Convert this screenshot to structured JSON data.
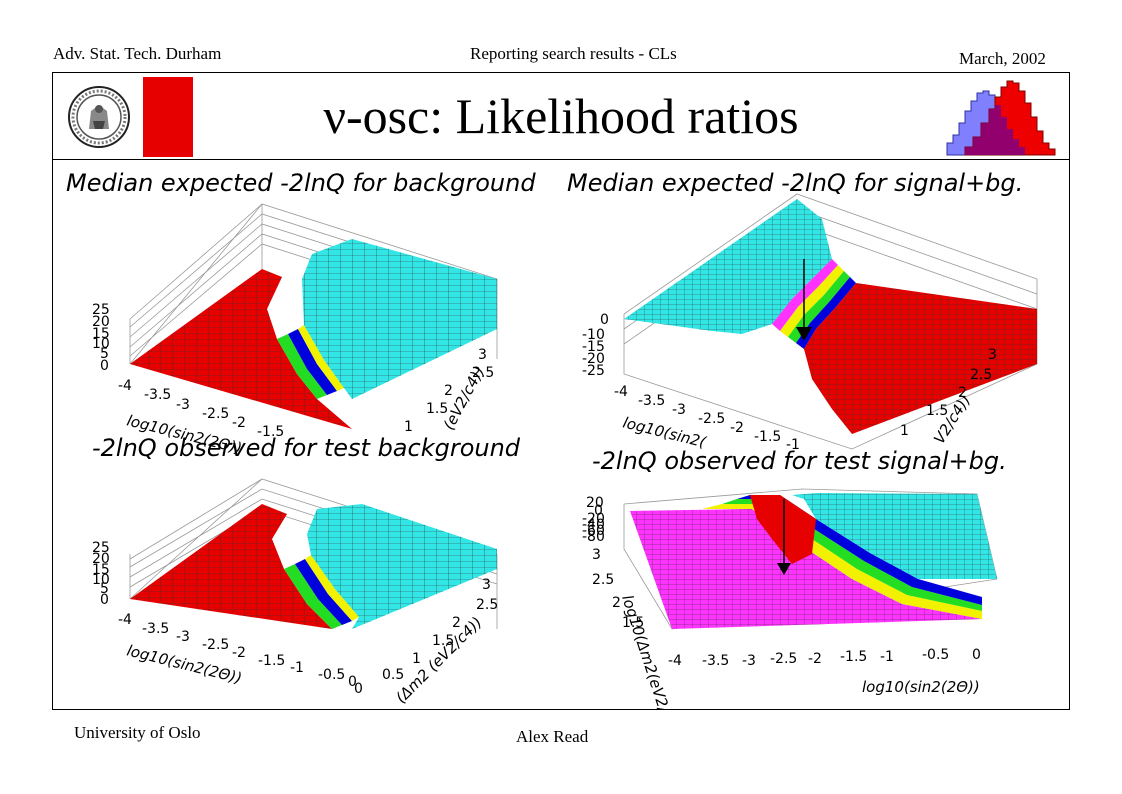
{
  "header": {
    "left": "Adv. Stat. Tech. Durham",
    "center": "Reporting search results - CLs",
    "right": "March, 2002"
  },
  "slide": {
    "title": "ν-osc: Likelihood ratios"
  },
  "footer": {
    "left": "University of Oslo",
    "center": "Alex Read"
  },
  "colors": {
    "red": "#e60000",
    "cyan": "#33e6e6",
    "blue": "#0000dd",
    "green": "#22dd22",
    "yellow": "#f2f200",
    "magenta": "#ff33ff"
  },
  "plots": {
    "tl": {
      "title": "Median expected -2lnQ for background",
      "z_ticks": [
        "25",
        "20",
        "15",
        "10",
        "5",
        "0"
      ],
      "x_ticks": [
        "-4",
        "-3.5",
        "-3",
        "-2.5",
        "-2",
        "-1.5"
      ],
      "y_ticks": [
        "3",
        "2.5",
        "2",
        "1.5",
        "1"
      ],
      "x_label": "log10(sin2(2Θ))",
      "y_label": "(eV2/c4))"
    },
    "tr": {
      "title": "Median expected -2lnQ for signal+bg.",
      "z_ticks": [
        "0",
        "-10",
        "-15",
        "-20",
        "-25"
      ],
      "x_ticks": [
        "-4",
        "-3.5",
        "-3",
        "-2.5",
        "-2",
        "-1.5",
        "-1"
      ],
      "y_ticks": [
        "3",
        "2.5",
        "2",
        "1.5",
        "1"
      ],
      "x_label": "log10(sin2(",
      "y_label": "V2/c4))"
    },
    "bl": {
      "title": "-2lnQ observed for test background",
      "z_ticks": [
        "25",
        "20",
        "15",
        "10",
        "5",
        "0"
      ],
      "x_ticks": [
        "-4",
        "-3.5",
        "-3",
        "-2.5",
        "-2",
        "-1.5",
        "-1",
        "-0.5",
        "0"
      ],
      "y_ticks": [
        "3",
        "2.5",
        "2",
        "1.5",
        "1",
        "0.5",
        "0"
      ],
      "x_label": "log10(sin2(2Θ))",
      "y_label": "(Δm2 (eV2/c4))"
    },
    "br": {
      "title": "-2lnQ observed for test signal+bg.",
      "z_ticks": [
        "20",
        "0",
        "-20",
        "-40",
        "-60",
        "-80"
      ],
      "x_ticks": [
        "-4",
        "-3.5",
        "-3",
        "-2.5",
        "-2",
        "-1.5",
        "-1",
        "-0.5",
        "0"
      ],
      "y_ticks": [
        "3",
        "2.5",
        "2",
        "1.5"
      ],
      "x_label": "log10(sin2(2Θ))",
      "y_label": "log10(Δm2(eV2/c"
    }
  }
}
